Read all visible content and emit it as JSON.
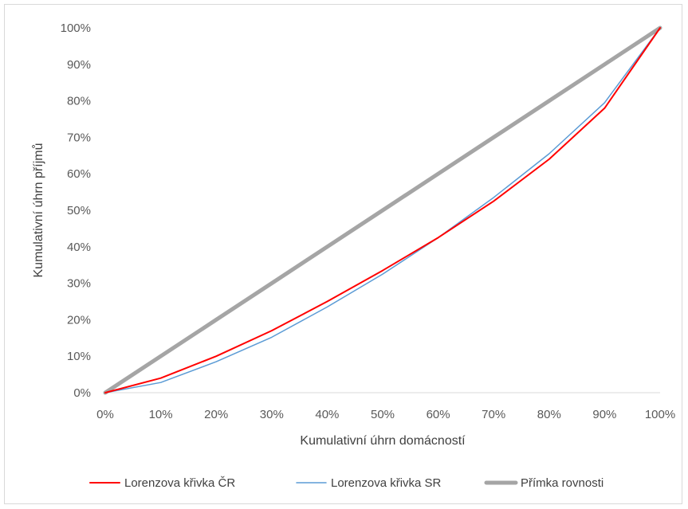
{
  "chart_data": {
    "type": "line",
    "title": "",
    "xlabel": "Kumulativní úhrn domácností",
    "ylabel": "Kumulativní úhrn příjmů",
    "x": [
      0,
      10,
      20,
      30,
      40,
      50,
      60,
      70,
      80,
      90,
      100
    ],
    "xticks": [
      "0%",
      "10%",
      "20%",
      "30%",
      "40%",
      "50%",
      "60%",
      "70%",
      "80%",
      "90%",
      "100%"
    ],
    "yticks": [
      "0%",
      "10%",
      "20%",
      "30%",
      "40%",
      "50%",
      "60%",
      "70%",
      "80%",
      "90%",
      "100%"
    ],
    "xlim": [
      0,
      100
    ],
    "ylim": [
      0,
      100
    ],
    "grid": false,
    "legend": "bottom",
    "series": [
      {
        "name": "Lorenzova křivka ČR",
        "color": "#ff0000",
        "values": [
          0,
          4,
          10,
          17,
          25,
          33.5,
          42.5,
          52.5,
          64,
          78,
          100
        ]
      },
      {
        "name": "Lorenzova křivka SR",
        "color": "#5b9bd5",
        "values": [
          0,
          2.8,
          8.5,
          15.2,
          23.5,
          32.5,
          42.5,
          53.5,
          65.5,
          79.5,
          100
        ]
      },
      {
        "name": "Přímka rovnosti",
        "color": "#a5a5a5",
        "values": [
          0,
          10,
          20,
          30,
          40,
          50,
          60,
          70,
          80,
          90,
          100
        ]
      }
    ]
  }
}
